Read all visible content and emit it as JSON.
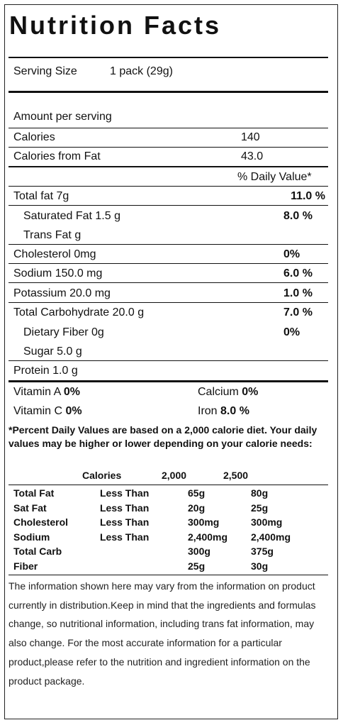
{
  "title": "Nutrition Facts",
  "serving": {
    "label": "Serving Size",
    "value": "1 pack (29g)"
  },
  "amount_per_serving": "Amount per serving",
  "calories": {
    "label": "Calories",
    "value": "140"
  },
  "calories_from_fat": {
    "label": "Calories from Fat",
    "value": "43.0"
  },
  "daily_value_header": "% Daily Value*",
  "nutrients": [
    {
      "label": "Total fat 7g",
      "dv": "11.0 %"
    },
    {
      "label": "Saturated Fat 1.5 g",
      "dv": "8.0 %"
    },
    {
      "label": "Trans Fat g",
      "dv": ""
    },
    {
      "label": "Cholesterol 0mg",
      "dv": "0%"
    },
    {
      "label": "Sodium 150.0 mg",
      "dv": "6.0 %"
    },
    {
      "label": "Potassium 20.0 mg",
      "dv": "1.0 %"
    },
    {
      "label": "Total Carbohydrate 20.0 g",
      "dv": "7.0 %"
    },
    {
      "label": "Dietary Fiber 0g",
      "dv": "0%"
    },
    {
      "label": "Sugar 5.0 g",
      "dv": ""
    },
    {
      "label": "Protein 1.0 g",
      "dv": ""
    }
  ],
  "vitamins": [
    {
      "name": "Vitamin A",
      "value": "0%"
    },
    {
      "name": "Calcium",
      "value": "0%"
    },
    {
      "name": "Vitamin C",
      "value": "0%"
    },
    {
      "name": "Iron",
      "value": "8.0 %"
    }
  ],
  "footnote": "*Percent Daily Values are based on a 2,000 calorie diet. Your daily values may be higher or lower depending on your calorie needs:",
  "dv_table": {
    "header": [
      "Calories",
      "2,000",
      "2,500"
    ],
    "rows": [
      [
        "Total Fat",
        "Less Than",
        "65g",
        "80g"
      ],
      [
        "Sat Fat",
        "Less Than",
        "20g",
        "25g"
      ],
      [
        "Cholesterol",
        "Less Than",
        "300mg",
        "300mg"
      ],
      [
        "Sodium",
        "Less Than",
        "2,400mg",
        "2,400mg"
      ],
      [
        "Total Carb",
        "",
        "300g",
        "375g"
      ],
      [
        "Fiber",
        "",
        "25g",
        "30g"
      ]
    ]
  },
  "disclaimer": "The information shown here may vary from the information on product currently in distribution.Keep in mind that the ingredients and formulas change, so nutritional information, including trans fat information, may also change. For the most accurate information for a particular product,please refer to the nutrition and ingredient information on the product package."
}
